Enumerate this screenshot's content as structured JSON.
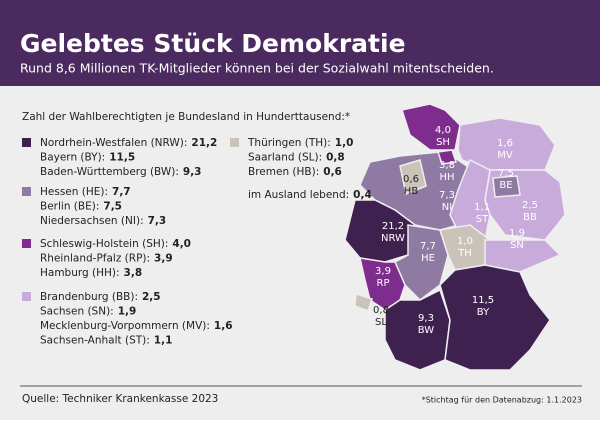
{
  "header": {
    "title": "Gelebtes Stück Demokratie",
    "subtitle": "Rund 8,6 Millionen TK-Mitglieder können bei der Sozialwahl mitentscheiden."
  },
  "legend": {
    "heading": "Zahl der Wahlberechtigten je Bundesland in Hunderttausend:*",
    "groups": [
      {
        "color": "#3f2150",
        "items": [
          {
            "label": "Nordrhein-Westfalen (NRW):",
            "value": "21,2"
          },
          {
            "label": "Bayern (BY):",
            "value": "11,5"
          },
          {
            "label": "Baden-Württemberg (BW):",
            "value": "9,3"
          }
        ]
      },
      {
        "color": "#8f7aa3",
        "items": [
          {
            "label": "Hessen (HE):",
            "value": "7,7"
          },
          {
            "label": "Berlin (BE):",
            "value": "7,5"
          },
          {
            "label": "Niedersachsen (NI):",
            "value": "7,3"
          }
        ]
      },
      {
        "color": "#7e2d8f",
        "items": [
          {
            "label": "Schleswig-Holstein (SH):",
            "value": "4,0"
          },
          {
            "label": "Rheinland-Pfalz (RP):",
            "value": "3,9"
          },
          {
            "label": "Hamburg (HH):",
            "value": "3,8"
          }
        ]
      },
      {
        "color": "#c8abdb",
        "items": [
          {
            "label": "Brandenburg (BB):",
            "value": "2,5"
          },
          {
            "label": "Sachsen (SN):",
            "value": "1,9"
          },
          {
            "label": "Mecklenburg-Vorpommern (MV):",
            "value": "1,6"
          },
          {
            "label": "Sachsen-Anhalt (ST):",
            "value": "1,1"
          }
        ]
      },
      {
        "color": "#c9c3b9",
        "items": [
          {
            "label": "Thüringen (TH):",
            "value": "1,0"
          },
          {
            "label": "Saarland (SL):",
            "value": "0,8"
          },
          {
            "label": "Bremen (HB):",
            "value": "0,6"
          }
        ]
      }
    ],
    "abroad": {
      "label": "im Ausland lebend:",
      "value": "0,4"
    }
  },
  "map": {
    "regions": [
      {
        "abbr": "NI",
        "value": "7,3",
        "color": "#8f7aa3"
      },
      {
        "abbr": "SH",
        "value": "4,0",
        "color": "#7e2d8f"
      },
      {
        "abbr": "MV",
        "value": "1,6",
        "color": "#c8abdb"
      },
      {
        "abbr": "BB",
        "value": "2,5",
        "color": "#c8abdb"
      },
      {
        "abbr": "ST",
        "value": "1,1",
        "color": "#c8abdb"
      },
      {
        "abbr": "NRW",
        "value": "21,2",
        "color": "#3f2150"
      },
      {
        "abbr": "HE",
        "value": "7,7",
        "color": "#8f7aa3"
      },
      {
        "abbr": "TH",
        "value": "1,0",
        "color": "#c9c3b9"
      },
      {
        "abbr": "SN",
        "value": "1,9",
        "color": "#c8abdb"
      },
      {
        "abbr": "RP",
        "value": "3,9",
        "color": "#7e2d8f"
      },
      {
        "abbr": "SL",
        "value": "0,8",
        "color": "#c9c3b9"
      },
      {
        "abbr": "BW",
        "value": "9,3",
        "color": "#3f2150"
      },
      {
        "abbr": "BY",
        "value": "11,5",
        "color": "#3f2150"
      },
      {
        "abbr": "HH",
        "value": "3,8",
        "color": "#7e2d8f"
      },
      {
        "abbr": "HB",
        "value": "0,6",
        "color": "#c9c3b9"
      },
      {
        "abbr": "BE",
        "value": "7,5",
        "color": "#8f7aa3"
      }
    ]
  },
  "footer": {
    "source": "Quelle: Techniker Krankenkasse 2023",
    "note": "*Stichtag für den Datenabzug: 1.1.2023"
  }
}
